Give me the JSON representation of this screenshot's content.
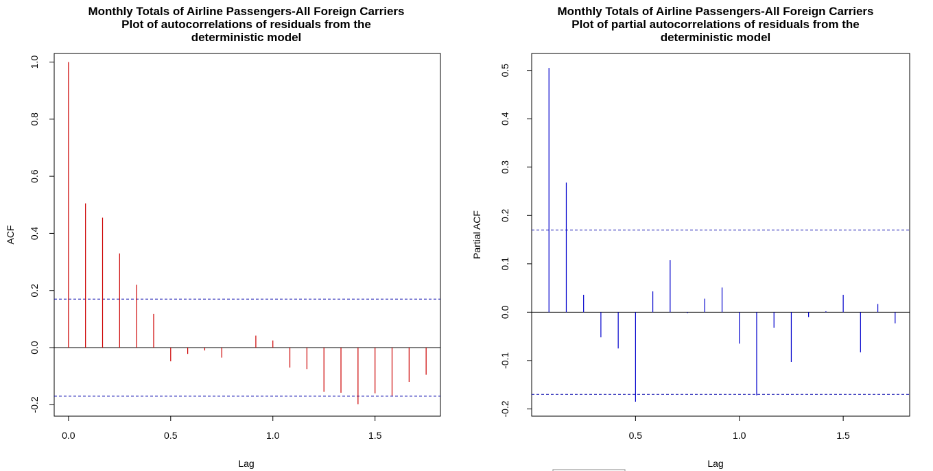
{
  "chart_data": [
    {
      "type": "bar",
      "title": [
        "Monthly Totals of Airline Passengers-All Foreign Carriers",
        "Plot of autocorrelations of residuals from the",
        "deterministic model"
      ],
      "xlabel": "Lag",
      "ylabel": "ACF",
      "xlim": [
        -0.07,
        1.82
      ],
      "ylim": [
        -0.24,
        1.03
      ],
      "xticks": [
        0.0,
        0.5,
        1.0,
        1.5
      ],
      "xtick_labels": [
        "0.0",
        "0.5",
        "1.0",
        "1.5"
      ],
      "yticks": [
        -0.2,
        0.0,
        0.2,
        0.4,
        0.6,
        0.8,
        1.0
      ],
      "ytick_labels": [
        "-0.2",
        "0.0",
        "0.2",
        "0.4",
        "0.6",
        "0.8",
        "1.0"
      ],
      "bar_color": "#cc0000",
      "ci_color": "#0000aa",
      "ci": 0.17,
      "lags": [
        0.0,
        0.0833,
        0.1667,
        0.25,
        0.3333,
        0.4167,
        0.5,
        0.5833,
        0.6667,
        0.75,
        0.8333,
        0.9167,
        1.0,
        1.0833,
        1.1667,
        1.25,
        1.3333,
        1.4167,
        1.5,
        1.5833,
        1.6667,
        1.75
      ],
      "values": [
        1.0,
        0.505,
        0.455,
        0.33,
        0.22,
        0.118,
        -0.048,
        -0.022,
        -0.01,
        -0.035,
        0.0,
        0.042,
        0.025,
        -0.07,
        -0.075,
        -0.155,
        -0.158,
        -0.198,
        -0.16,
        -0.168,
        -0.12,
        -0.095
      ]
    },
    {
      "type": "bar",
      "title": [
        "Monthly Totals of Airline Passengers-All Foreign Carriers",
        "Plot of partial autocorrelations of residuals from the",
        "deterministic model"
      ],
      "xlabel": "Lag",
      "ylabel": "Partial ACF",
      "xlim": [
        0.0,
        1.82
      ],
      "ylim": [
        -0.215,
        0.535
      ],
      "xticks": [
        0.5,
        1.0,
        1.5
      ],
      "xtick_labels": [
        "0.5",
        "1.0",
        "1.5"
      ],
      "yticks": [
        -0.2,
        -0.1,
        0.0,
        0.1,
        0.2,
        0.3,
        0.4,
        0.5
      ],
      "ytick_labels": [
        "-0.2",
        "-0.1",
        "0.0",
        "0.1",
        "0.2",
        "0.3",
        "0.4",
        "0.5"
      ],
      "bar_color": "#0000cc",
      "ci_color": "#0000aa",
      "ci": 0.17,
      "lags": [
        0.0833,
        0.1667,
        0.25,
        0.3333,
        0.4167,
        0.5,
        0.5833,
        0.6667,
        0.75,
        0.8333,
        0.9167,
        1.0,
        1.0833,
        1.1667,
        1.25,
        1.3333,
        1.4167,
        1.5,
        1.5833,
        1.6667,
        1.75
      ],
      "values": [
        0.505,
        0.268,
        0.036,
        -0.052,
        -0.075,
        -0.185,
        0.043,
        0.108,
        -0.002,
        0.028,
        0.051,
        -0.065,
        -0.172,
        -0.032,
        -0.103,
        -0.01,
        0.002,
        0.036,
        -0.083,
        0.017,
        -0.023
      ]
    }
  ]
}
